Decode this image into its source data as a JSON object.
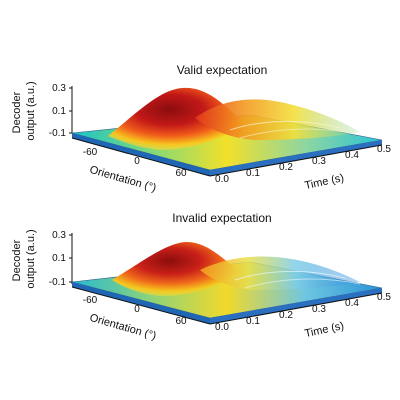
{
  "chart_data": [
    {
      "type": "surface",
      "title": "Valid expectation",
      "zlabel_lines": [
        "Decoder",
        "output (a.u.)"
      ],
      "xlabel": "Orientation (°)",
      "ylabel": "Time (s)",
      "x_ticks": [
        "-60",
        "0",
        "60"
      ],
      "y_ticks": [
        "0.0",
        "0.1",
        "0.2",
        "0.3",
        "0.4",
        "0.5"
      ],
      "z_ticks": [
        "0.3",
        "0.1",
        "-0.1"
      ],
      "xlim": [
        -90,
        90
      ],
      "ylim": [
        0,
        0.5
      ],
      "zlim": [
        -0.1,
        0.3
      ],
      "peak": {
        "orientation": 0,
        "time": 0.18,
        "value": 0.3
      }
    },
    {
      "type": "surface",
      "title": "Invalid expectation",
      "zlabel_lines": [
        "Decoder",
        "output (a.u.)"
      ],
      "xlabel": "Orientation (°)",
      "ylabel": "Time (s)",
      "x_ticks": [
        "-60",
        "0",
        "60"
      ],
      "y_ticks": [
        "0.0",
        "0.1",
        "0.2",
        "0.3",
        "0.4",
        "0.5"
      ],
      "z_ticks": [
        "0.3",
        "0.1",
        "-0.1"
      ],
      "xlim": [
        -90,
        90
      ],
      "ylim": [
        0,
        0.5
      ],
      "zlim": [
        -0.1,
        0.3
      ],
      "peak": {
        "orientation": 0,
        "time": 0.18,
        "value": 0.25
      }
    }
  ]
}
